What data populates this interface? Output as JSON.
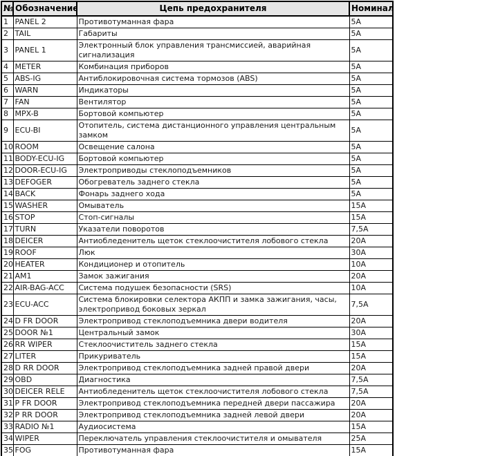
{
  "table": {
    "headers": [
      "№",
      "Обозначение",
      "Цепь предохранителя",
      "Номинал"
    ],
    "header_bg": "#e6e6e6",
    "border_color": "#000000",
    "rows": [
      [
        "1",
        "PANEL 2",
        "Противотуманная фара",
        "5А"
      ],
      [
        "2",
        "TAIL",
        "Габариты",
        "5А"
      ],
      [
        "3",
        "PANEL 1",
        "Электронный блок управления трансмиссией, аварийная сигнализация",
        "5А"
      ],
      [
        "4",
        "METER",
        "Комбинация приборов",
        "5А"
      ],
      [
        "5",
        "ABS-IG",
        "Антиблокировочная система тормозов (ABS)",
        "5А"
      ],
      [
        "6",
        "WARN",
        "Индикаторы",
        "5А"
      ],
      [
        "7",
        "FAN",
        "Вентилятор",
        "5А"
      ],
      [
        "8",
        "MPX-B",
        "Бортовой компьютер",
        "5А"
      ],
      [
        "9",
        "ECU-BI",
        "Отопитель, система дистанционного управления центральным замком",
        "5А"
      ],
      [
        "10",
        "ROOM",
        "Освещение салона",
        "5А"
      ],
      [
        "11",
        "BODY-ECU-IG",
        "Бортовой компьютер",
        "5А"
      ],
      [
        "12",
        "DOOR-ECU-IG",
        "Электроприводы стеклоподъемников",
        "5А"
      ],
      [
        "13",
        "DEFOGER",
        "Обогреватель заднего стекла",
        "5А"
      ],
      [
        "14",
        "BACK",
        "Фонарь заднего хода",
        "5А"
      ],
      [
        "15",
        "WASHER",
        "Омыватель",
        "15А"
      ],
      [
        "16",
        "STOP",
        "Стоп-сигналы",
        "15А"
      ],
      [
        "17",
        "TURN",
        "Указатели поворотов",
        "7,5А"
      ],
      [
        "18",
        "DEICER",
        "Антиобледенитель щеток стеклоочистителя лобового стекла",
        "20А"
      ],
      [
        "19",
        "ROOF",
        "Люк",
        "30А"
      ],
      [
        "20",
        "HEATER",
        "Кондиционер и отопитель",
        "10А"
      ],
      [
        "21",
        "AM1",
        "Замок зажигания",
        "20А"
      ],
      [
        "22",
        "AIR-BAG-ACC",
        "Система подушек безопасности (SRS)",
        "10А"
      ],
      [
        "23",
        "ECU-ACC",
        "Система блокировки селектора АКПП и замка зажигания, часы, электропривод боковых зеркал",
        "7,5А"
      ],
      [
        "24",
        "D FR DOOR",
        "Электропривод стеклоподъемника двери водителя",
        "20А"
      ],
      [
        "25",
        "DOOR №1",
        "Центральный замок",
        "30А"
      ],
      [
        "26",
        "RR WIPER",
        "Стеклоочиститель заднего стекла",
        "15А"
      ],
      [
        "27",
        "LITER",
        "Прикуриватель",
        "15А"
      ],
      [
        "28",
        "D RR DOOR",
        "Электропривод стеклоподъемника задней правой двери",
        "20А"
      ],
      [
        "29",
        "OBD",
        "Диагностика",
        "7,5А"
      ],
      [
        "30",
        "DEICER RELE",
        "Антиобледенитель щеток стеклоочистителя лобового стекла",
        "7,5А"
      ],
      [
        "31",
        "P FR DOOR",
        "Электропривод стеклоподъемника передней двери пассажира",
        "20А"
      ],
      [
        "32",
        "P RR DOOR",
        "Электропривод стеклоподъемника задней левой двери",
        "20А"
      ],
      [
        "33",
        "RADIO №1",
        "Аудиосистема",
        "15А"
      ],
      [
        "34",
        "WIPER",
        "Переключатель управления стеклоочистителя и омывателя",
        "25А"
      ],
      [
        "35",
        "FOG",
        "Противотуманная фара",
        "15А"
      ]
    ]
  }
}
